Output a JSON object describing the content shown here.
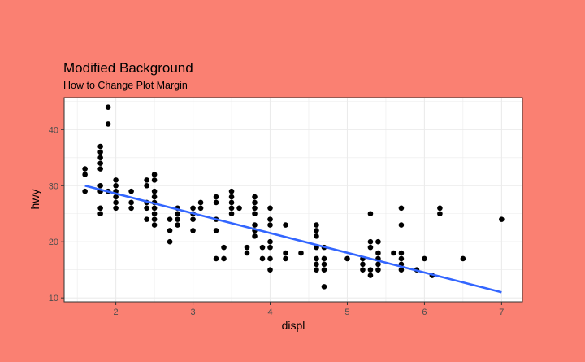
{
  "chart_data": {
    "type": "scatter",
    "title": "Modified Background",
    "subtitle": "How to Change Plot Margin",
    "xlabel": "displ",
    "ylabel": "hwy",
    "xlim": [
      1.33,
      7.27
    ],
    "ylim": [
      9.3,
      45.7
    ],
    "xticks": [
      2,
      3,
      4,
      5,
      6,
      7
    ],
    "yticks": [
      10,
      20,
      30,
      40
    ],
    "grid": true,
    "legend": "none",
    "colors": {
      "background": "#FA8072",
      "panel": "#FFFFFF",
      "points": "#000000",
      "trend": "#3366FF",
      "grid": "#EBEBEB"
    },
    "trend_line": {
      "method": "linear",
      "x": [
        1.6,
        7.0
      ],
      "y": [
        30.0,
        11.0
      ]
    },
    "points": [
      [
        1.6,
        33
      ],
      [
        1.6,
        32
      ],
      [
        1.6,
        29
      ],
      [
        1.8,
        37
      ],
      [
        1.8,
        36
      ],
      [
        1.8,
        35
      ],
      [
        1.8,
        34
      ],
      [
        1.8,
        33
      ],
      [
        1.8,
        30
      ],
      [
        1.8,
        29
      ],
      [
        1.8,
        26
      ],
      [
        1.8,
        25
      ],
      [
        1.9,
        44
      ],
      [
        1.9,
        41
      ],
      [
        1.9,
        29
      ],
      [
        2.0,
        31
      ],
      [
        2.0,
        30
      ],
      [
        2.0,
        29
      ],
      [
        2.0,
        28
      ],
      [
        2.0,
        27
      ],
      [
        2.0,
        26
      ],
      [
        2.2,
        29
      ],
      [
        2.2,
        27
      ],
      [
        2.2,
        26
      ],
      [
        2.4,
        31
      ],
      [
        2.4,
        30
      ],
      [
        2.4,
        27
      ],
      [
        2.4,
        26
      ],
      [
        2.4,
        24
      ],
      [
        2.5,
        32
      ],
      [
        2.5,
        31
      ],
      [
        2.5,
        29
      ],
      [
        2.5,
        28
      ],
      [
        2.5,
        27
      ],
      [
        2.5,
        26
      ],
      [
        2.5,
        25
      ],
      [
        2.5,
        24
      ],
      [
        2.5,
        23
      ],
      [
        2.7,
        24
      ],
      [
        2.7,
        22
      ],
      [
        2.7,
        20
      ],
      [
        2.8,
        26
      ],
      [
        2.8,
        25
      ],
      [
        2.8,
        24
      ],
      [
        2.8,
        23
      ],
      [
        3.0,
        26
      ],
      [
        3.0,
        25
      ],
      [
        3.0,
        24
      ],
      [
        3.0,
        22
      ],
      [
        3.1,
        27
      ],
      [
        3.1,
        26
      ],
      [
        3.3,
        28
      ],
      [
        3.3,
        27
      ],
      [
        3.3,
        24
      ],
      [
        3.3,
        22
      ],
      [
        3.3,
        17
      ],
      [
        3.4,
        19
      ],
      [
        3.4,
        17
      ],
      [
        3.5,
        29
      ],
      [
        3.5,
        28
      ],
      [
        3.5,
        27
      ],
      [
        3.5,
        26
      ],
      [
        3.5,
        25
      ],
      [
        3.6,
        26
      ],
      [
        3.7,
        19
      ],
      [
        3.7,
        18
      ],
      [
        3.8,
        28
      ],
      [
        3.8,
        27
      ],
      [
        3.8,
        26
      ],
      [
        3.8,
        25
      ],
      [
        3.8,
        23
      ],
      [
        3.8,
        22
      ],
      [
        3.8,
        21
      ],
      [
        3.9,
        19
      ],
      [
        3.9,
        17
      ],
      [
        4.0,
        26
      ],
      [
        4.0,
        24
      ],
      [
        4.0,
        23
      ],
      [
        4.0,
        20
      ],
      [
        4.0,
        19
      ],
      [
        4.0,
        17
      ],
      [
        4.0,
        15
      ],
      [
        4.2,
        23
      ],
      [
        4.2,
        18
      ],
      [
        4.2,
        17
      ],
      [
        4.4,
        18
      ],
      [
        4.6,
        23
      ],
      [
        4.6,
        22
      ],
      [
        4.6,
        21
      ],
      [
        4.6,
        19
      ],
      [
        4.6,
        17
      ],
      [
        4.6,
        16
      ],
      [
        4.6,
        15
      ],
      [
        4.7,
        19
      ],
      [
        4.7,
        17
      ],
      [
        4.7,
        16
      ],
      [
        4.7,
        15
      ],
      [
        4.7,
        12
      ],
      [
        5.0,
        17
      ],
      [
        5.2,
        17
      ],
      [
        5.2,
        16
      ],
      [
        5.2,
        15
      ],
      [
        5.3,
        25
      ],
      [
        5.3,
        20
      ],
      [
        5.3,
        19
      ],
      [
        5.3,
        15
      ],
      [
        5.3,
        14
      ],
      [
        5.4,
        20
      ],
      [
        5.4,
        18
      ],
      [
        5.4,
        17
      ],
      [
        5.4,
        16
      ],
      [
        5.4,
        15
      ],
      [
        5.6,
        18
      ],
      [
        5.7,
        26
      ],
      [
        5.7,
        23
      ],
      [
        5.7,
        18
      ],
      [
        5.7,
        17
      ],
      [
        5.7,
        16
      ],
      [
        5.7,
        15
      ],
      [
        5.9,
        15
      ],
      [
        6.0,
        17
      ],
      [
        6.1,
        14
      ],
      [
        6.2,
        26
      ],
      [
        6.2,
        25
      ],
      [
        6.5,
        17
      ],
      [
        7.0,
        24
      ]
    ]
  }
}
